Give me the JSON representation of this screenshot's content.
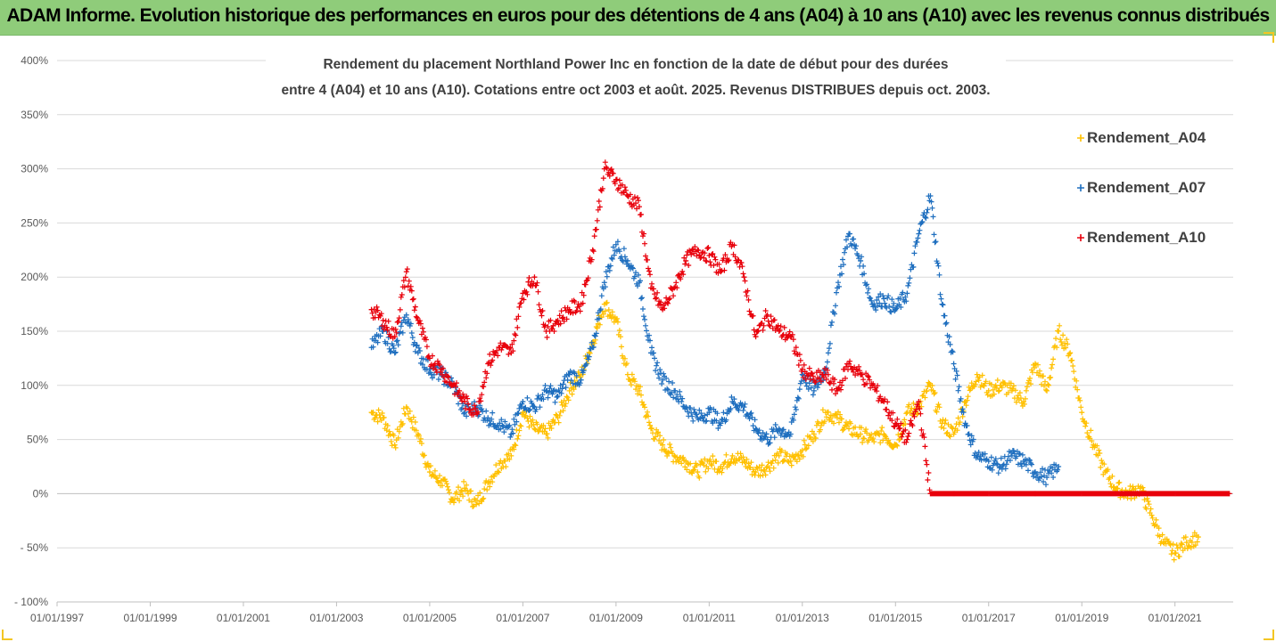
{
  "header": {
    "title": "ADAM Informe. Evolution historique des performances en euros pour des détentions de 4 ans (A04) à 10 ans (A10) avec les revenus connus distribués"
  },
  "colors": {
    "header_bg": "#8fcc7a",
    "A04": "#ffc000",
    "A07": "#1f6fbf",
    "A10": "#e8000b",
    "grid": "#d9d9d9"
  },
  "chart_data": {
    "type": "scatter",
    "title_lines": [
      "Rendement du placement Northland Power Inc en fonction de la date de début pour des durées",
      "entre 4 (A04) et 10 ans (A10). Cotations entre oct 2003 et août. 2025. Revenus DISTRIBUES depuis oct. 2003."
    ],
    "xlabel": "",
    "ylabel": "",
    "x_ticks": [
      "01/01/1997",
      "01/01/1999",
      "01/01/2001",
      "01/01/2003",
      "01/01/2005",
      "01/01/2007",
      "01/01/2009",
      "01/01/2011",
      "01/01/2013",
      "01/01/2015",
      "01/01/2017",
      "01/01/2019",
      "01/01/2021"
    ],
    "xlim": [
      "01/01/1997",
      "01/04/2022"
    ],
    "y_ticks": [
      "400%",
      "350%",
      "300%",
      "250%",
      "200%",
      "150%",
      "100%",
      "50%",
      "0%",
      "- 50%",
      "- 100%"
    ],
    "ylim": [
      -100,
      400
    ],
    "grid": "horizontal",
    "legend_position": "right",
    "series": [
      {
        "name": "Rendement_A04",
        "marker": "+",
        "points": [
          [
            "2003-10",
            75
          ],
          [
            "2004-01",
            70
          ],
          [
            "2004-04",
            45
          ],
          [
            "2004-07",
            80
          ],
          [
            "2004-10",
            55
          ],
          [
            "2005-01",
            20
          ],
          [
            "2005-04",
            12
          ],
          [
            "2005-07",
            -5
          ],
          [
            "2005-10",
            5
          ],
          [
            "2006-01",
            -10
          ],
          [
            "2006-04",
            10
          ],
          [
            "2006-07",
            28
          ],
          [
            "2006-10",
            35
          ],
          [
            "2007-01",
            75
          ],
          [
            "2007-04",
            60
          ],
          [
            "2007-07",
            55
          ],
          [
            "2007-10",
            70
          ],
          [
            "2008-01",
            95
          ],
          [
            "2008-04",
            110
          ],
          [
            "2008-07",
            140
          ],
          [
            "2008-10",
            175
          ],
          [
            "2009-01",
            160
          ],
          [
            "2009-04",
            110
          ],
          [
            "2009-07",
            95
          ],
          [
            "2009-10",
            60
          ],
          [
            "2010-01",
            45
          ],
          [
            "2010-04",
            35
          ],
          [
            "2010-07",
            30
          ],
          [
            "2010-10",
            20
          ],
          [
            "2011-01",
            30
          ],
          [
            "2011-04",
            25
          ],
          [
            "2011-07",
            35
          ],
          [
            "2011-10",
            30
          ],
          [
            "2012-01",
            20
          ],
          [
            "2012-04",
            25
          ],
          [
            "2012-07",
            35
          ],
          [
            "2012-10",
            30
          ],
          [
            "2013-01",
            40
          ],
          [
            "2013-04",
            55
          ],
          [
            "2013-07",
            75
          ],
          [
            "2013-10",
            70
          ],
          [
            "2014-01",
            60
          ],
          [
            "2014-04",
            55
          ],
          [
            "2014-07",
            50
          ],
          [
            "2014-10",
            55
          ],
          [
            "2015-01",
            45
          ],
          [
            "2015-04",
            75
          ],
          [
            "2015-07",
            80
          ],
          [
            "2015-10",
            100
          ],
          [
            "2016-01",
            65
          ],
          [
            "2016-04",
            55
          ],
          [
            "2016-07",
            85
          ],
          [
            "2016-10",
            110
          ],
          [
            "2017-01",
            95
          ],
          [
            "2017-04",
            100
          ],
          [
            "2017-07",
            95
          ],
          [
            "2017-10",
            85
          ],
          [
            "2018-01",
            120
          ],
          [
            "2018-04",
            95
          ],
          [
            "2018-07",
            150
          ],
          [
            "2018-10",
            130
          ],
          [
            "2019-01",
            75
          ],
          [
            "2019-04",
            45
          ],
          [
            "2019-07",
            20
          ],
          [
            "2019-10",
            5
          ],
          [
            "2020-01",
            0
          ],
          [
            "2020-04",
            5
          ],
          [
            "2020-07",
            -20
          ],
          [
            "2020-10",
            -45
          ],
          [
            "2021-01",
            -55
          ],
          [
            "2021-04",
            -45
          ],
          [
            "2021-07",
            -40
          ]
        ]
      },
      {
        "name": "Rendement_A07",
        "marker": "+",
        "points": [
          [
            "2003-10",
            135
          ],
          [
            "2004-01",
            150
          ],
          [
            "2004-04",
            130
          ],
          [
            "2004-07",
            165
          ],
          [
            "2004-10",
            130
          ],
          [
            "2005-01",
            115
          ],
          [
            "2005-04",
            110
          ],
          [
            "2005-07",
            100
          ],
          [
            "2005-10",
            75
          ],
          [
            "2006-01",
            80
          ],
          [
            "2006-04",
            70
          ],
          [
            "2006-07",
            65
          ],
          [
            "2006-10",
            55
          ],
          [
            "2007-01",
            85
          ],
          [
            "2007-04",
            80
          ],
          [
            "2007-07",
            95
          ],
          [
            "2007-10",
            90
          ],
          [
            "2008-01",
            110
          ],
          [
            "2008-04",
            105
          ],
          [
            "2008-07",
            135
          ],
          [
            "2008-10",
            195
          ],
          [
            "2009-01",
            230
          ],
          [
            "2009-04",
            215
          ],
          [
            "2009-07",
            195
          ],
          [
            "2009-10",
            130
          ],
          [
            "2010-01",
            105
          ],
          [
            "2010-04",
            95
          ],
          [
            "2010-07",
            80
          ],
          [
            "2010-10",
            70
          ],
          [
            "2011-01",
            75
          ],
          [
            "2011-04",
            65
          ],
          [
            "2011-07",
            85
          ],
          [
            "2011-10",
            80
          ],
          [
            "2012-01",
            60
          ],
          [
            "2012-04",
            50
          ],
          [
            "2012-07",
            60
          ],
          [
            "2012-10",
            55
          ],
          [
            "2013-01",
            110
          ],
          [
            "2013-04",
            95
          ],
          [
            "2013-07",
            115
          ],
          [
            "2013-10",
            190
          ],
          [
            "2014-01",
            240
          ],
          [
            "2014-04",
            215
          ],
          [
            "2014-07",
            175
          ],
          [
            "2014-10",
            180
          ],
          [
            "2015-01",
            170
          ],
          [
            "2015-04",
            185
          ],
          [
            "2015-07",
            240
          ],
          [
            "2015-10",
            275
          ],
          [
            "2016-01",
            175
          ],
          [
            "2016-04",
            120
          ],
          [
            "2016-07",
            65
          ],
          [
            "2016-10",
            35
          ],
          [
            "2017-01",
            30
          ],
          [
            "2017-04",
            25
          ],
          [
            "2017-07",
            35
          ],
          [
            "2017-10",
            30
          ],
          [
            "2018-01",
            20
          ],
          [
            "2018-04",
            15
          ],
          [
            "2018-07",
            25
          ]
        ]
      },
      {
        "name": "Rendement_A10",
        "marker": "+",
        "points": [
          [
            "2003-10",
            170
          ],
          [
            "2004-01",
            160
          ],
          [
            "2004-04",
            145
          ],
          [
            "2004-07",
            205
          ],
          [
            "2004-10",
            160
          ],
          [
            "2005-01",
            125
          ],
          [
            "2005-04",
            115
          ],
          [
            "2005-07",
            100
          ],
          [
            "2005-10",
            85
          ],
          [
            "2006-01",
            75
          ],
          [
            "2006-04",
            120
          ],
          [
            "2006-07",
            135
          ],
          [
            "2006-10",
            130
          ],
          [
            "2007-01",
            185
          ],
          [
            "2007-04",
            200
          ],
          [
            "2007-07",
            150
          ],
          [
            "2007-10",
            160
          ],
          [
            "2008-01",
            170
          ],
          [
            "2008-04",
            175
          ],
          [
            "2008-07",
            225
          ],
          [
            "2008-10",
            300
          ],
          [
            "2009-01",
            290
          ],
          [
            "2009-04",
            275
          ],
          [
            "2009-07",
            265
          ],
          [
            "2009-10",
            190
          ],
          [
            "2010-01",
            170
          ],
          [
            "2010-04",
            190
          ],
          [
            "2010-07",
            215
          ],
          [
            "2010-10",
            225
          ],
          [
            "2011-01",
            220
          ],
          [
            "2011-04",
            205
          ],
          [
            "2011-07",
            230
          ],
          [
            "2011-10",
            200
          ],
          [
            "2012-01",
            145
          ],
          [
            "2012-04",
            165
          ],
          [
            "2012-07",
            150
          ],
          [
            "2012-10",
            145
          ],
          [
            "2013-01",
            115
          ],
          [
            "2013-04",
            105
          ],
          [
            "2013-07",
            110
          ],
          [
            "2013-10",
            95
          ],
          [
            "2014-01",
            120
          ],
          [
            "2014-04",
            110
          ],
          [
            "2014-07",
            100
          ],
          [
            "2014-10",
            85
          ],
          [
            "2015-01",
            65
          ],
          [
            "2015-04",
            50
          ],
          [
            "2015-07",
            85
          ],
          [
            "2015-10",
            0
          ],
          [
            "2016-04",
            0
          ],
          [
            "2017-01",
            0
          ],
          [
            "2018-01",
            0
          ],
          [
            "2019-01",
            0
          ],
          [
            "2020-01",
            0
          ],
          [
            "2021-01",
            0
          ],
          [
            "2022-03",
            0
          ]
        ]
      }
    ]
  }
}
